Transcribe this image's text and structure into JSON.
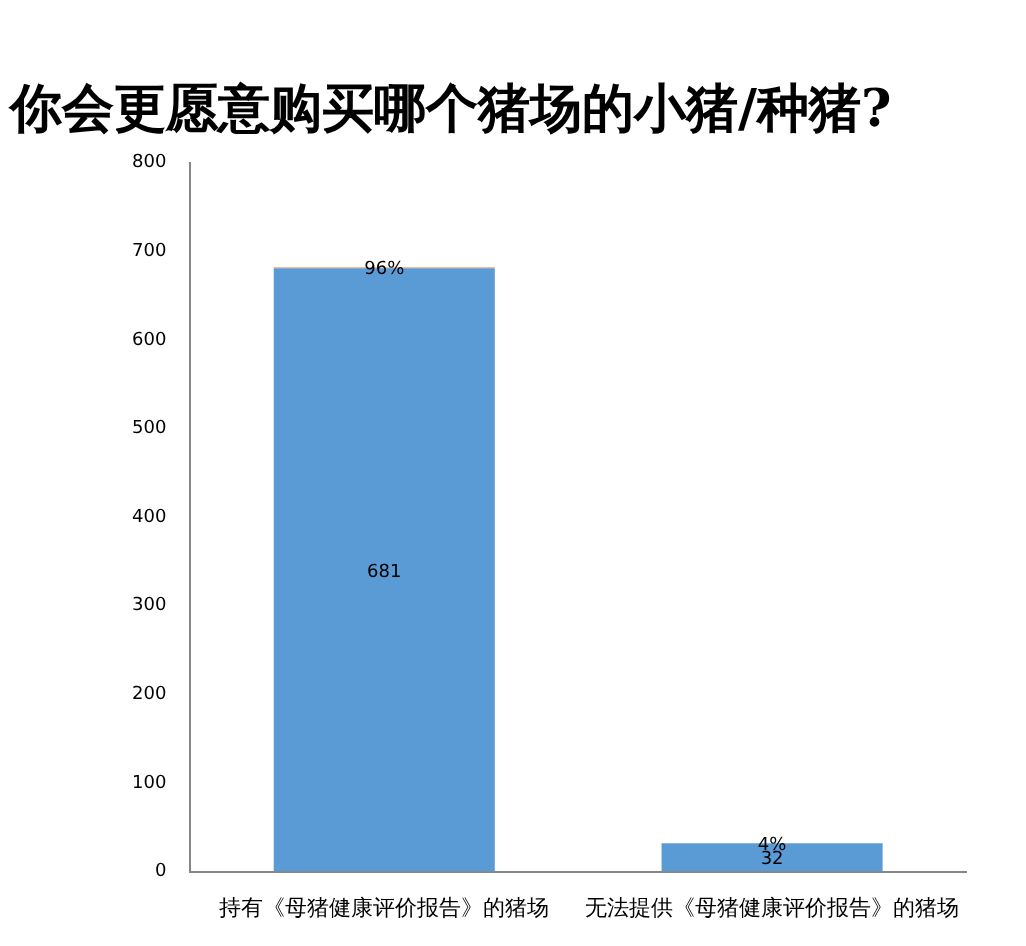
{
  "chart_data": {
    "type": "bar",
    "title": "你会更愿意购买哪个猪场的小猪/种猪?",
    "categories": [
      "持有《母猪健康评价报告》的猪场",
      "无法提供《母猪健康评价报告》的猪场"
    ],
    "stacked": true,
    "series": [
      {
        "color": "#5b9bd5",
        "values": [
          681,
          32
        ],
        "value_labels": [
          "681",
          "32"
        ]
      },
      {
        "color": "#ed7d31",
        "values": [
          0.96,
          0.04
        ],
        "value_labels": [
          "96%",
          "4%"
        ]
      }
    ],
    "ylim": [
      0,
      800
    ],
    "yticks": [
      0,
      100,
      200,
      300,
      400,
      500,
      600,
      700,
      800
    ],
    "grid": false,
    "legend": false
  }
}
